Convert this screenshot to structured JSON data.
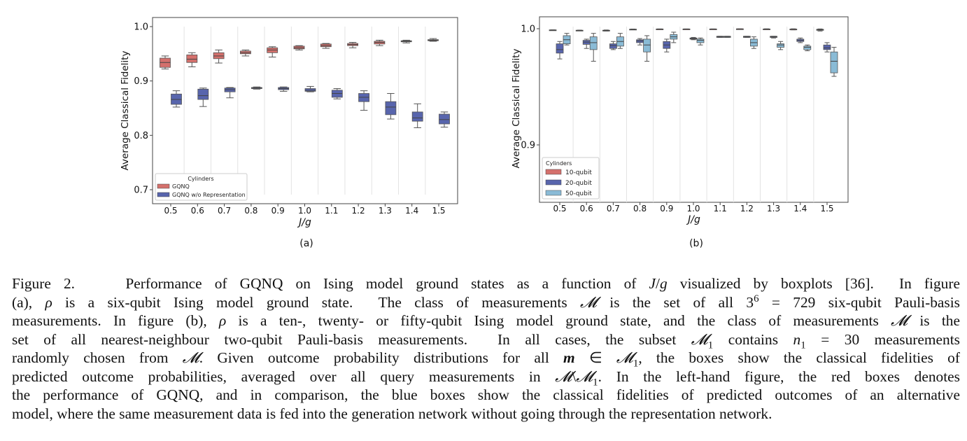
{
  "charts": [
    {
      "panel_label": "(a)",
      "ylabel": "Average Classical Fidelity",
      "xlabel": "J/g",
      "legend_title": "Cylinders",
      "yticks": [
        "1.0",
        "0.9",
        "0.8",
        "0.7"
      ],
      "xticks": [
        "0.5",
        "0.6",
        "0.7",
        "0.8",
        "0.9",
        "1.0",
        "1.1",
        "1.2",
        "1.3",
        "1.4",
        "1.5"
      ]
    },
    {
      "panel_label": "(b)",
      "ylabel": "Average Classical Fidelity",
      "xlabel": "J/g",
      "legend_title": "Cylinders",
      "yticks": [
        "1.0",
        "0.9"
      ],
      "xticks": [
        "0.5",
        "0.6",
        "0.7",
        "0.8",
        "0.9",
        "1.0",
        "1.1",
        "1.2",
        "1.3",
        "1.4",
        "1.5"
      ]
    }
  ],
  "chart_data": [
    {
      "type": "box",
      "xlabel": "J/g",
      "ylabel": "Average Classical Fidelity",
      "ylim": [
        0.685,
        1.015
      ],
      "categories": [
        "0.5",
        "0.6",
        "0.7",
        "0.8",
        "0.9",
        "1.0",
        "1.1",
        "1.2",
        "1.3",
        "1.4",
        "1.5"
      ],
      "grid": "vertical separators",
      "legend_position": "bottom-left",
      "series": [
        {
          "name": "GQNQ",
          "color": "#d4706c",
          "boxes": [
            [
              0.922,
              0.925,
              0.934,
              0.942,
              0.946
            ],
            [
              0.926,
              0.934,
              0.94,
              0.948,
              0.952
            ],
            [
              0.933,
              0.941,
              0.946,
              0.952,
              0.957
            ],
            [
              0.946,
              0.95,
              0.952,
              0.955,
              0.957
            ],
            [
              0.944,
              0.952,
              0.957,
              0.961,
              0.963
            ],
            [
              0.957,
              0.959,
              0.961,
              0.964,
              0.965
            ],
            [
              0.96,
              0.963,
              0.965,
              0.968,
              0.969
            ],
            [
              0.961,
              0.965,
              0.967,
              0.969,
              0.971
            ],
            [
              0.965,
              0.968,
              0.971,
              0.973,
              0.975
            ],
            [
              0.97,
              0.972,
              0.973,
              0.974,
              0.975
            ],
            [
              0.973,
              0.974,
              0.975,
              0.976,
              0.978
            ]
          ]
        },
        {
          "name": "GQNQ w/o Representation",
          "color": "#5865ad",
          "boxes": [
            [
              0.852,
              0.857,
              0.866,
              0.876,
              0.882
            ],
            [
              0.853,
              0.866,
              0.873,
              0.885,
              0.887
            ],
            [
              0.869,
              0.88,
              0.884,
              0.887,
              0.888
            ],
            [
              0.885,
              0.886,
              0.887,
              0.888,
              0.889
            ],
            [
              0.881,
              0.884,
              0.886,
              0.888,
              0.889
            ],
            [
              0.88,
              0.881,
              0.883,
              0.886,
              0.89
            ],
            [
              0.867,
              0.87,
              0.877,
              0.883,
              0.886
            ],
            [
              0.846,
              0.862,
              0.87,
              0.877,
              0.882
            ],
            [
              0.83,
              0.838,
              0.852,
              0.862,
              0.877
            ],
            [
              0.814,
              0.826,
              0.832,
              0.843,
              0.858
            ],
            [
              0.815,
              0.821,
              0.829,
              0.839,
              0.843
            ]
          ]
        }
      ]
    },
    {
      "type": "box",
      "xlabel": "J/g",
      "ylabel": "Average Classical Fidelity",
      "ylim": [
        0.85,
        1.012
      ],
      "categories": [
        "0.5",
        "0.6",
        "0.7",
        "0.8",
        "0.9",
        "1.0",
        "1.1",
        "1.2",
        "1.3",
        "1.4",
        "1.5"
      ],
      "grid": "vertical separators",
      "legend_position": "bottom-left",
      "series": [
        {
          "name": "10-qubit",
          "color": "#d4706c",
          "boxes": [
            [
              0.9985,
              0.9985,
              0.9988,
              0.999,
              0.999
            ],
            [
              0.9982,
              0.9983,
              0.9985,
              0.9987,
              0.9988
            ],
            [
              0.998,
              0.9982,
              0.9985,
              0.9987,
              0.9989
            ],
            [
              0.9992,
              0.9993,
              0.9994,
              0.9996,
              0.9997
            ],
            [
              0.9994,
              0.9994,
              0.9996,
              0.9998,
              0.9998
            ],
            [
              0.9996,
              0.9996,
              0.9997,
              0.9998,
              0.9998
            ],
            [
              0.9996,
              0.9996,
              0.9997,
              0.9998,
              0.9998
            ],
            [
              0.9996,
              0.9996,
              0.9998,
              0.9999,
              0.9999
            ],
            [
              0.9992,
              0.9993,
              0.9996,
              0.9998,
              0.9999
            ],
            [
              0.999,
              0.9992,
              0.9995,
              0.9997,
              0.9999
            ],
            [
              0.998,
              0.9986,
              0.9991,
              0.9995,
              0.9998
            ]
          ]
        },
        {
          "name": "20-qubit",
          "color": "#5865ad",
          "boxes": [
            [
              0.974,
              0.979,
              0.982,
              0.987,
              0.989
            ],
            [
              0.983,
              0.9865,
              0.9885,
              0.99,
              0.991
            ],
            [
              0.982,
              0.983,
              0.9855,
              0.987,
              0.989
            ],
            [
              0.986,
              0.988,
              0.9895,
              0.9905,
              0.9915
            ],
            [
              0.98,
              0.983,
              0.986,
              0.989,
              0.991
            ],
            [
              0.9905,
              0.991,
              0.9915,
              0.992,
              0.9925
            ],
            [
              0.9925,
              0.9925,
              0.993,
              0.9935,
              0.9935
            ],
            [
              0.9925,
              0.9925,
              0.993,
              0.9935,
              0.9935
            ],
            [
              0.992,
              0.9925,
              0.993,
              0.9935,
              0.9935
            ],
            [
              0.988,
              0.989,
              0.99,
              0.991,
              0.992
            ],
            [
              0.98,
              0.982,
              0.9835,
              0.986,
              0.988
            ]
          ]
        },
        {
          "name": "50-qubit",
          "color": "#8abbd6",
          "boxes": [
            [
              0.986,
              0.987,
              0.9905,
              0.994,
              0.996
            ],
            [
              0.972,
              0.982,
              0.988,
              0.993,
              0.996
            ],
            [
              0.983,
              0.985,
              0.989,
              0.993,
              0.996
            ],
            [
              0.972,
              0.98,
              0.986,
              0.991,
              0.994
            ],
            [
              0.988,
              0.991,
              0.993,
              0.995,
              0.997
            ],
            [
              0.986,
              0.988,
              0.99,
              0.991,
              0.992
            ],
            [
              0.9925,
              0.9925,
              0.993,
              0.9935,
              0.9935
            ],
            [
              0.983,
              0.985,
              0.988,
              0.991,
              0.993
            ],
            [
              0.982,
              0.984,
              0.986,
              0.987,
              0.989
            ],
            [
              0.981,
              0.982,
              0.984,
              0.985,
              0.986
            ],
            [
              0.959,
              0.962,
              0.972,
              0.98,
              0.984
            ]
          ]
        }
      ]
    }
  ],
  "caption": {
    "lines": [
      "Figure 2.    Performance of GQNQ on Ising model ground states as a function of J/g visualized by boxplots [36].  In figure",
      "(a), ρ is a six-qubit Ising model ground state.  The class of measurements 𝓜 is the set of all 3⁶ = 729 six-qubit Pauli-basis",
      "measurements. In figure (b), ρ is a ten-, twenty- or fifty-qubit Ising model ground state, and the class of measurements 𝓜 is the",
      "set of all nearest-neighbour two-qubit Pauli-basis measurements.  In all cases, the subset 𝓜₁ contains n₁ = 30 measurements",
      "randomly chosen from 𝓜. Given outcome probability distributions for all m ∈ 𝓜₁, the boxes show the classical fidelities of",
      "predicted outcome probabilities, averaged over all query measurements in 𝓜\\𝓜₁. In the left-hand figure, the red boxes denotes",
      "the performance of GQNQ, and in comparison, the blue boxes show the classical fidelities of predicted outcomes of an alternative",
      "model, where the same measurement data is fed into the generation network without going through the representation network."
    ]
  }
}
